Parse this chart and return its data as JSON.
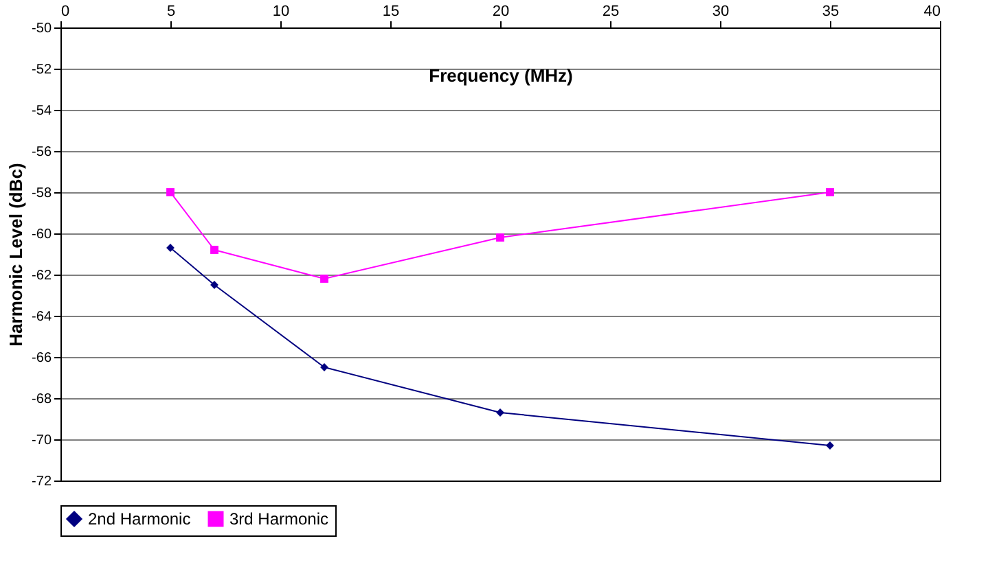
{
  "chart_data": {
    "type": "line",
    "xlabel": "Frequency (MHz)",
    "ylabel": "Harmonic Level (dBc)",
    "x": [
      5,
      7,
      12,
      20,
      35
    ],
    "series": [
      {
        "name": "2nd Harmonic",
        "color": "#000080",
        "marker": "diamond",
        "values": [
          -60.7,
          -62.5,
          -66.5,
          -68.7,
          -70.3
        ]
      },
      {
        "name": "3rd Harmonic",
        "color": "#ff00ff",
        "marker": "square",
        "values": [
          -58,
          -60.8,
          -62.2,
          -60.2,
          -58
        ]
      }
    ],
    "xlim": [
      0,
      40
    ],
    "xticks": [
      0,
      5,
      10,
      15,
      20,
      25,
      30,
      35,
      40
    ],
    "ylim": [
      -72,
      -50
    ],
    "yticks": [
      -72,
      -70,
      -68,
      -66,
      -64,
      -62,
      -60,
      -58,
      -56,
      -54,
      -52,
      -50
    ],
    "grid": "y",
    "legend": "bottom"
  }
}
